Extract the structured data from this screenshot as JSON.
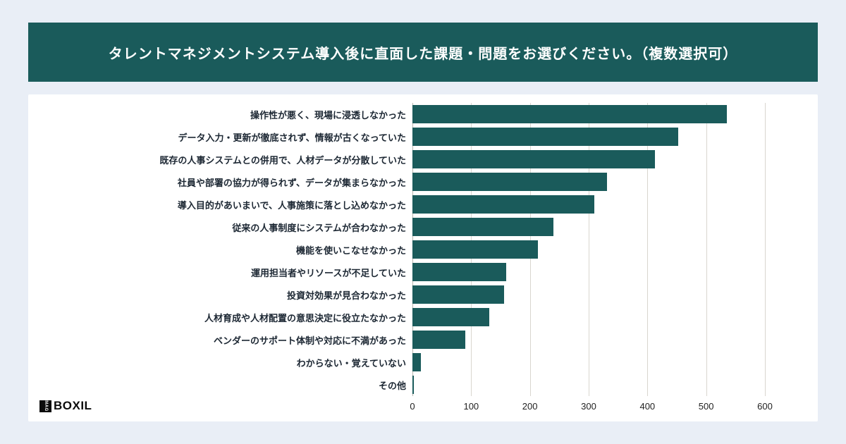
{
  "header": {
    "title": "タレントマネジメントシステム導入後に直面した課題・問題をお選びください。（複数選択可）"
  },
  "logo": {
    "mag": "MAG",
    "brand": "BOXIL"
  },
  "colors": {
    "banner": "#1a5b5b",
    "bar": "#1a5b5b",
    "background": "#e9eef6",
    "card": "#ffffff",
    "gridline": "#d9d6cf"
  },
  "chart_data": {
    "type": "bar",
    "orientation": "horizontal",
    "title": "タレントマネジメントシステム導入後に直面した課題・問題をお選びください。（複数選択可）",
    "xlabel": "",
    "ylabel": "",
    "xlim": [
      0,
      600
    ],
    "ticks": [
      0,
      100,
      200,
      300,
      400,
      500,
      600
    ],
    "grid": true,
    "legend": false,
    "bar_color": "#1a5b5b",
    "categories": [
      "操作性が悪く、現場に浸透しなかった",
      "データ入力・更新が徹底されず、情報が古くなっていた",
      "既存の人事システムとの併用で、人材データが分散していた",
      "社員や部署の協力が得られず、データが集まらなかった",
      "導入目的があいまいで、人事施策に落とし込めなかった",
      "従来の人事制度にシステムが合わなかった",
      "機能を使いこなせなかった",
      "運用担当者やリソースが不足していた",
      "投資対効果が見合わなかった",
      "人材育成や人材配置の意思決定に役立たなかった",
      "ベンダーのサポート体制や対応に不満があった",
      "わからない・覚えていない",
      "その他"
    ],
    "values": [
      535,
      452,
      413,
      331,
      310,
      240,
      214,
      160,
      156,
      131,
      90,
      14,
      2
    ]
  }
}
